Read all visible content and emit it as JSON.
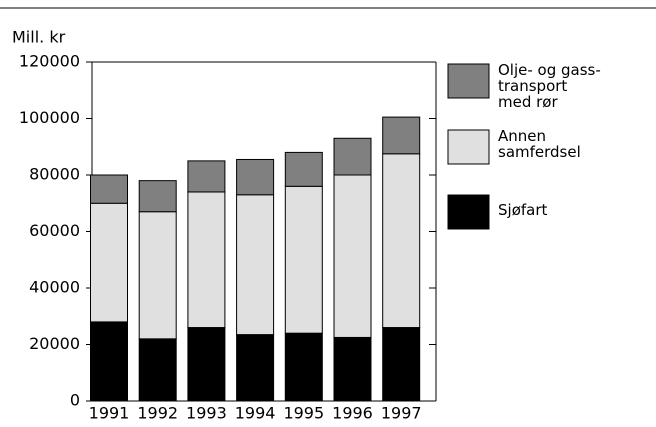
{
  "chart_data": {
    "type": "stacked_bar",
    "y_label": "Mill. kr",
    "categories": [
      "1991",
      "1992",
      "1993",
      "1994",
      "1995",
      "1996",
      "1997"
    ],
    "series": [
      {
        "name": "Sjøfart",
        "color": "#000000",
        "values": [
          28000,
          22000,
          26000,
          23500,
          24000,
          22500,
          26000
        ]
      },
      {
        "name": "Annen\nsamferdsel",
        "color": "#e0e0e0",
        "values": [
          42000,
          45000,
          48000,
          49500,
          52000,
          57500,
          61500
        ]
      },
      {
        "name": "Olje- og gass-\ntransport\nmed rør",
        "color": "#808080",
        "values": [
          10000,
          11000,
          11000,
          12500,
          12000,
          13000,
          13000
        ]
      }
    ],
    "ylim": [
      0,
      120000
    ],
    "yticks": [
      0,
      20000,
      40000,
      60000,
      80000,
      100000,
      120000
    ],
    "grid": false
  }
}
